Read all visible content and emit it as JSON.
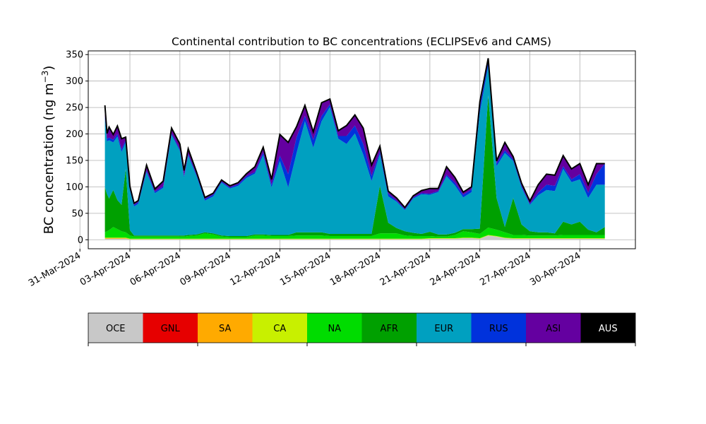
{
  "chart_data": {
    "type": "area",
    "stacked": true,
    "title": "Continental contribution to BC concentrations (ECLIPSEv6 and CAMS)",
    "ylabel": "BC concentration (ng m",
    "ylabel_sup": "−3",
    "ylabel_close": ")",
    "ylim": [
      -17,
      357
    ],
    "yticks": [
      0,
      50,
      100,
      150,
      200,
      250,
      300,
      350
    ],
    "xlim": [
      "2024-03-31T12:00",
      "2024-05-03T08:00"
    ],
    "xticks": [
      "31-Mar-2024",
      "03-Apr-2024",
      "06-Apr-2024",
      "09-Apr-2024",
      "12-Apr-2024",
      "15-Apr-2024",
      "18-Apr-2024",
      "21-Apr-2024",
      "24-Apr-2024",
      "27-Apr-2024",
      "30-Apr-2024"
    ],
    "grid": true,
    "x": [
      "2024-04-01T12:00",
      "2024-04-01T15:00",
      "2024-04-01T18:00",
      "2024-04-02T00:00",
      "2024-04-02T06:00",
      "2024-04-02T12:00",
      "2024-04-02T18:00",
      "2024-04-03T00:00",
      "2024-04-03T06:00",
      "2024-04-03T12:00",
      "2024-04-04T00:00",
      "2024-04-04T12:00",
      "2024-04-05T00:00",
      "2024-04-05T12:00",
      "2024-04-06T00:00",
      "2024-04-06T06:00",
      "2024-04-06T12:00",
      "2024-04-07T00:00",
      "2024-04-07T12:00",
      "2024-04-08T00:00",
      "2024-04-08T12:00",
      "2024-04-09T00:00",
      "2024-04-09T12:00",
      "2024-04-10T00:00",
      "2024-04-10T12:00",
      "2024-04-11T00:00",
      "2024-04-11T12:00",
      "2024-04-12T00:00",
      "2024-04-12T12:00",
      "2024-04-13T00:00",
      "2024-04-13T12:00",
      "2024-04-14T00:00",
      "2024-04-14T12:00",
      "2024-04-15T00:00",
      "2024-04-15T12:00",
      "2024-04-16T00:00",
      "2024-04-16T12:00",
      "2024-04-17T00:00",
      "2024-04-17T12:00",
      "2024-04-18T00:00",
      "2024-04-18T12:00",
      "2024-04-19T00:00",
      "2024-04-19T12:00",
      "2024-04-20T00:00",
      "2024-04-20T12:00",
      "2024-04-21T00:00",
      "2024-04-21T12:00",
      "2024-04-22T00:00",
      "2024-04-22T12:00",
      "2024-04-23T00:00",
      "2024-04-23T12:00",
      "2024-04-24T00:00",
      "2024-04-24T12:00",
      "2024-04-25T00:00",
      "2024-04-25T12:00",
      "2024-04-26T00:00",
      "2024-04-26T12:00",
      "2024-04-27T00:00",
      "2024-04-27T12:00",
      "2024-04-28T00:00",
      "2024-04-28T12:00",
      "2024-04-29T00:00",
      "2024-04-29T12:00",
      "2024-04-30T00:00",
      "2024-04-30T12:00",
      "2024-05-01T00:00",
      "2024-05-01T12:00"
    ],
    "series": [
      {
        "name": "OCE",
        "color": "#c8c8c8",
        "values": [
          2,
          2,
          2,
          2,
          2,
          2,
          2,
          1,
          1,
          1,
          1,
          1,
          1,
          1,
          1,
          1,
          1,
          1,
          1,
          1,
          1,
          1,
          1,
          1,
          1,
          1,
          1,
          1,
          1,
          1,
          1,
          1,
          1,
          1,
          1,
          1,
          1,
          1,
          1,
          1,
          1,
          1,
          1,
          1,
          1,
          2,
          2,
          2,
          2,
          3,
          3,
          2,
          8,
          6,
          3,
          2,
          2,
          2,
          2,
          2,
          2,
          2,
          2,
          2,
          2,
          2,
          2
        ]
      },
      {
        "name": "GNL",
        "color": "#e60000",
        "values": [
          0,
          0,
          0,
          0,
          0,
          0,
          0,
          0,
          0,
          0,
          0,
          0,
          0,
          0,
          0,
          0,
          0,
          0,
          0,
          0,
          0,
          0,
          0,
          0,
          0,
          0,
          0,
          0,
          0,
          0,
          0,
          0,
          0,
          0,
          0,
          0,
          0,
          0,
          0,
          0,
          0,
          0,
          0,
          0,
          0,
          0,
          0,
          0,
          0,
          0,
          0,
          0,
          0,
          0,
          0,
          0,
          0,
          0,
          0,
          0,
          0,
          0,
          0,
          0,
          0,
          0,
          0
        ]
      },
      {
        "name": "SA",
        "color": "#ffaa00",
        "values": [
          1,
          1,
          1,
          1,
          1,
          1,
          1,
          0,
          0,
          0,
          0,
          0,
          0,
          0,
          0,
          0,
          0,
          0,
          0,
          0,
          0,
          0,
          0,
          0,
          0,
          0,
          0,
          0,
          0,
          0,
          0,
          0,
          0,
          0,
          0,
          0,
          0,
          0,
          0,
          0,
          0,
          0,
          0,
          0,
          0,
          0,
          0,
          0,
          0,
          0,
          0,
          0,
          0,
          0,
          0,
          0,
          0,
          0,
          0,
          0,
          0,
          0,
          0,
          0,
          0,
          0,
          0
        ]
      },
      {
        "name": "CA",
        "color": "#c8f000",
        "values": [
          1,
          1,
          1,
          1,
          1,
          1,
          1,
          1,
          1,
          1,
          1,
          1,
          1,
          1,
          1,
          1,
          1,
          1,
          1,
          1,
          1,
          1,
          1,
          1,
          1,
          1,
          1,
          1,
          1,
          1,
          1,
          1,
          1,
          1,
          1,
          1,
          1,
          1,
          1,
          1,
          1,
          1,
          1,
          1,
          1,
          1,
          1,
          1,
          1,
          1,
          1,
          1,
          1,
          1,
          1,
          1,
          1,
          1,
          1,
          1,
          1,
          1,
          1,
          1,
          1,
          1,
          1
        ]
      },
      {
        "name": "NA",
        "color": "#00dc00",
        "values": [
          10,
          12,
          14,
          20,
          16,
          12,
          10,
          6,
          4,
          4,
          4,
          4,
          4,
          4,
          4,
          4,
          5,
          6,
          10,
          8,
          4,
          3,
          3,
          3,
          6,
          6,
          5,
          5,
          5,
          6,
          6,
          6,
          6,
          5,
          5,
          5,
          5,
          5,
          5,
          10,
          10,
          10,
          6,
          5,
          5,
          4,
          3,
          3,
          6,
          12,
          10,
          8,
          14,
          12,
          10,
          6,
          6,
          5,
          5,
          5,
          5,
          6,
          6,
          6,
          6,
          6,
          6
        ]
      },
      {
        "name": "AFR",
        "color": "#00a000",
        "values": [
          85,
          70,
          60,
          70,
          55,
          50,
          120,
          10,
          2,
          2,
          2,
          2,
          2,
          2,
          2,
          2,
          2,
          2,
          2,
          2,
          2,
          2,
          2,
          2,
          2,
          2,
          2,
          2,
          2,
          6,
          6,
          6,
          6,
          4,
          4,
          4,
          4,
          4,
          4,
          90,
          20,
          10,
          8,
          6,
          4,
          8,
          4,
          4,
          4,
          4,
          6,
          10,
          250,
          60,
          10,
          70,
          20,
          8,
          6,
          6,
          4,
          25,
          20,
          25,
          10,
          5,
          15
        ]
      },
      {
        "name": "EUR",
        "color": "#00a0c0",
        "values": [
          130,
          100,
          110,
          90,
          120,
          100,
          50,
          75,
          55,
          60,
          120,
          80,
          90,
          190,
          160,
          110,
          150,
          110,
          60,
          70,
          100,
          90,
          95,
          110,
          115,
          150,
          90,
          140,
          90,
          150,
          210,
          160,
          210,
          240,
          180,
          170,
          190,
          150,
          100,
          60,
          50,
          50,
          40,
          65,
          75,
          70,
          80,
          110,
          90,
          60,
          70,
          220,
          55,
          60,
          140,
          70,
          70,
          50,
          70,
          80,
          80,
          100,
          80,
          80,
          60,
          90,
          80
        ]
      },
      {
        "name": "RUS",
        "color": "#0032dc",
        "values": [
          5,
          5,
          5,
          5,
          5,
          5,
          5,
          3,
          3,
          3,
          3,
          3,
          3,
          3,
          3,
          3,
          3,
          3,
          3,
          3,
          2,
          2,
          3,
          3,
          3,
          5,
          5,
          10,
          25,
          30,
          10,
          15,
          10,
          5,
          5,
          15,
          15,
          20,
          10,
          5,
          5,
          2,
          2,
          2,
          2,
          2,
          2,
          3,
          5,
          5,
          5,
          10,
          10,
          5,
          5,
          3,
          3,
          2,
          5,
          10,
          10,
          5,
          5,
          10,
          10,
          20,
          40
        ]
      },
      {
        "name": "ASI",
        "color": "#6400a0",
        "values": [
          20,
          10,
          20,
          10,
          15,
          20,
          5,
          5,
          3,
          3,
          10,
          5,
          10,
          10,
          10,
          10,
          10,
          5,
          3,
          3,
          3,
          3,
          3,
          5,
          10,
          10,
          10,
          40,
          60,
          20,
          20,
          15,
          25,
          10,
          10,
          20,
          20,
          30,
          20,
          10,
          5,
          5,
          3,
          3,
          5,
          10,
          5,
          15,
          10,
          5,
          5,
          10,
          5,
          5,
          15,
          5,
          5,
          5,
          15,
          20,
          20,
          20,
          20,
          20,
          15,
          20,
          0
        ]
      },
      {
        "name": "AUS",
        "color": "#000000",
        "values": [
          0,
          0,
          0,
          0,
          0,
          0,
          0,
          0,
          0,
          0,
          0,
          0,
          0,
          0,
          0,
          0,
          0,
          0,
          0,
          0,
          0,
          0,
          0,
          0,
          0,
          0,
          0,
          0,
          0,
          0,
          0,
          0,
          0,
          0,
          0,
          0,
          0,
          0,
          0,
          0,
          0,
          0,
          0,
          0,
          0,
          0,
          0,
          0,
          0,
          0,
          0,
          0,
          0,
          0,
          0,
          0,
          0,
          0,
          0,
          0,
          0,
          0,
          0,
          0,
          0,
          0,
          0
        ]
      }
    ]
  },
  "legend": {
    "items": [
      {
        "label": "OCE",
        "color": "#c8c8c8",
        "text_color": "#000000"
      },
      {
        "label": "GNL",
        "color": "#e60000",
        "text_color": "#000000"
      },
      {
        "label": "SA",
        "color": "#ffaa00",
        "text_color": "#000000"
      },
      {
        "label": "CA",
        "color": "#c8f000",
        "text_color": "#000000"
      },
      {
        "label": "NA",
        "color": "#00dc00",
        "text_color": "#000000"
      },
      {
        "label": "AFR",
        "color": "#00a000",
        "text_color": "#000000"
      },
      {
        "label": "EUR",
        "color": "#00a0c0",
        "text_color": "#000000"
      },
      {
        "label": "RUS",
        "color": "#0032dc",
        "text_color": "#000000"
      },
      {
        "label": "ASI",
        "color": "#6400a0",
        "text_color": "#000000"
      },
      {
        "label": "AUS",
        "color": "#000000",
        "text_color": "#ffffff"
      }
    ]
  }
}
